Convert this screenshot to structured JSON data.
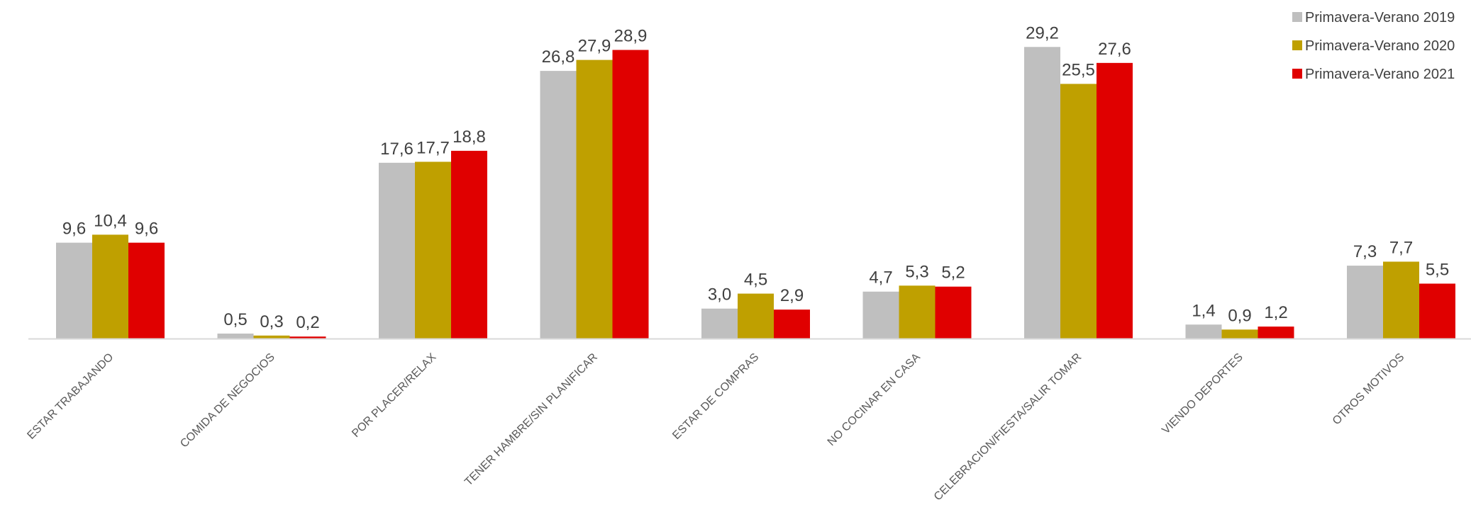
{
  "chart_data": {
    "type": "bar",
    "categories": [
      "ESTAR TRABAJANDO",
      "COMIDA DE NEGOCIOS",
      "POR PLACER/RELAX",
      "TENER HAMBRE/SIN PLANIFICAR",
      "ESTAR DE COMPRAS",
      "NO COCINAR EN CASA",
      "CELEBRACION/FIESTA/SALIR TOMAR",
      "VIENDO DEPORTES",
      "OTROS MOTIVOS"
    ],
    "series": [
      {
        "name": "Primavera-Verano 2019",
        "color": "#bfbfbf",
        "values": [
          9.6,
          0.5,
          17.6,
          26.8,
          3.0,
          4.7,
          29.2,
          1.4,
          7.3
        ],
        "labels": [
          "9,6",
          "0,5",
          "17,6",
          "26,8",
          "3,0",
          "4,7",
          "29,2",
          "1,4",
          "7,3"
        ]
      },
      {
        "name": "Primavera-Verano 2020",
        "color": "#bfa000",
        "values": [
          10.4,
          0.3,
          17.7,
          27.9,
          4.5,
          5.3,
          25.5,
          0.9,
          7.7
        ],
        "labels": [
          "10,4",
          "0,3",
          "17,7",
          "27,9",
          "4,5",
          "5,3",
          "25,5",
          "0,9",
          "7,7"
        ]
      },
      {
        "name": "Primavera-Verano 2021",
        "color": "#e00000",
        "values": [
          9.6,
          0.2,
          18.8,
          28.9,
          2.9,
          5.2,
          27.6,
          1.2,
          5.5
        ],
        "labels": [
          "9,6",
          "0,2",
          "18,8",
          "28,9",
          "2,9",
          "5,2",
          "27,6",
          "1,2",
          "5,5"
        ]
      }
    ],
    "ylim": [
      0,
      32
    ],
    "grid": false,
    "legend_position": "top-right",
    "title": "",
    "xlabel": "",
    "ylabel": ""
  }
}
